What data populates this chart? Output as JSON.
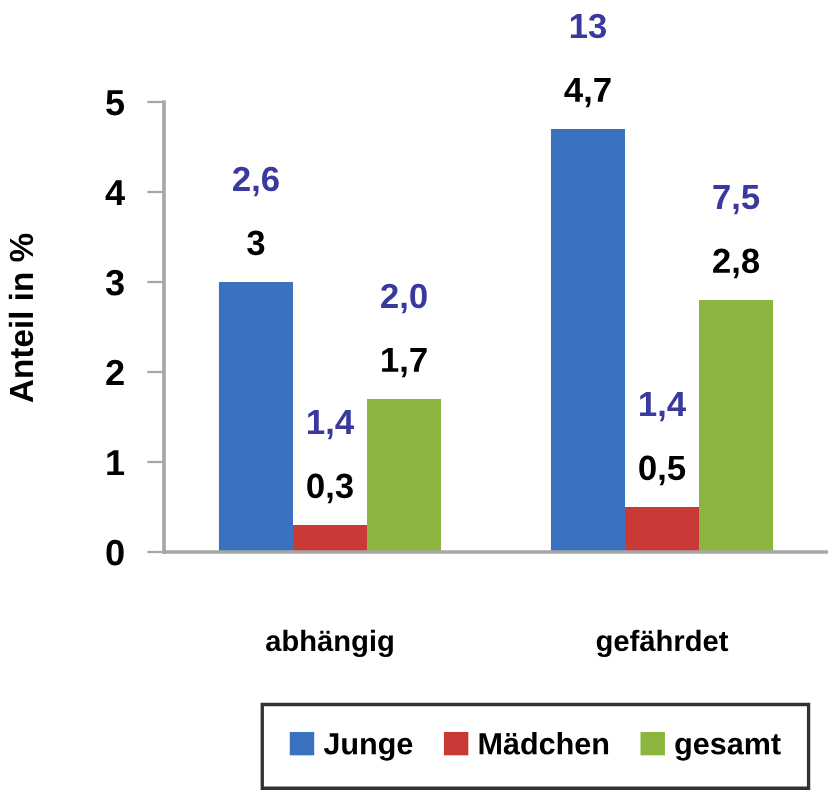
{
  "chart_data": {
    "type": "bar",
    "ylabel": "Anteil in %",
    "categories": [
      "abhängig",
      "gefährdet"
    ],
    "series": [
      {
        "name": "Junge",
        "color": "#3a72c0",
        "values": [
          3,
          4.7
        ],
        "value_labels": [
          "3",
          "4,7"
        ]
      },
      {
        "name": "Mädchen",
        "color": "#c93a36",
        "values": [
          0.3,
          0.5
        ],
        "value_labels": [
          "0,3",
          "0,5"
        ]
      },
      {
        "name": "gesamt",
        "color": "#8cb53f",
        "values": [
          1.7,
          2.8
        ],
        "value_labels": [
          "1,7",
          "2,8"
        ]
      }
    ],
    "annotations": [
      "2,6",
      "1,4",
      "2,0",
      "13",
      "1,4",
      "7,5"
    ],
    "ylim": [
      0,
      5
    ],
    "yticks": [
      0,
      1,
      2,
      3,
      4,
      5
    ],
    "legend": "bottom"
  }
}
